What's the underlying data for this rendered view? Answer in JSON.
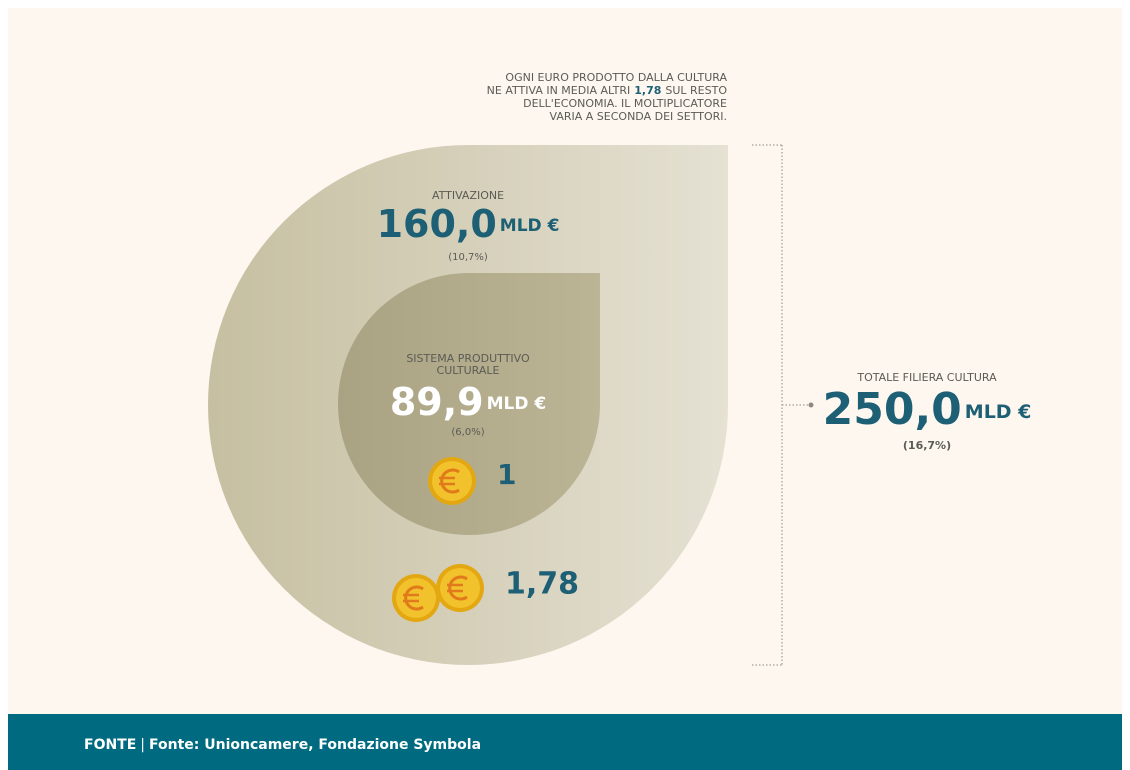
{
  "note": {
    "line1": "OGNI EURO PRODOTTO DALLA CULTURA",
    "line2_before": "NE ATTIVA IN MEDIA ALTRI",
    "line2_bold": "1,78",
    "line2_after": "SUL RESTO",
    "line3": "DELL'ECONOMIA. IL MOLTIPLICATORE",
    "line4": "VARIA A SECONDA DEI SETTORI."
  },
  "outer": {
    "label": "ATTIVAZIONE",
    "value": "160,0",
    "unit": "MLD €",
    "share": "(10,7%)",
    "coin_label": "1,78"
  },
  "inner": {
    "label_line1": "SISTEMA PRODUTTIVO",
    "label_line2": "CULTURALE",
    "value": "89,9",
    "unit": "MLD €",
    "share": "(6,0%)",
    "coin_label": "1"
  },
  "total": {
    "label": "TOTALE FILIERA CULTURA",
    "value": "250,0",
    "unit": "MLD €",
    "share": "(16,7%)"
  },
  "footer": {
    "heading": "FONTE",
    "separator": "|",
    "source": "Fonte: Unioncamere, Fondazione Symbola"
  }
}
